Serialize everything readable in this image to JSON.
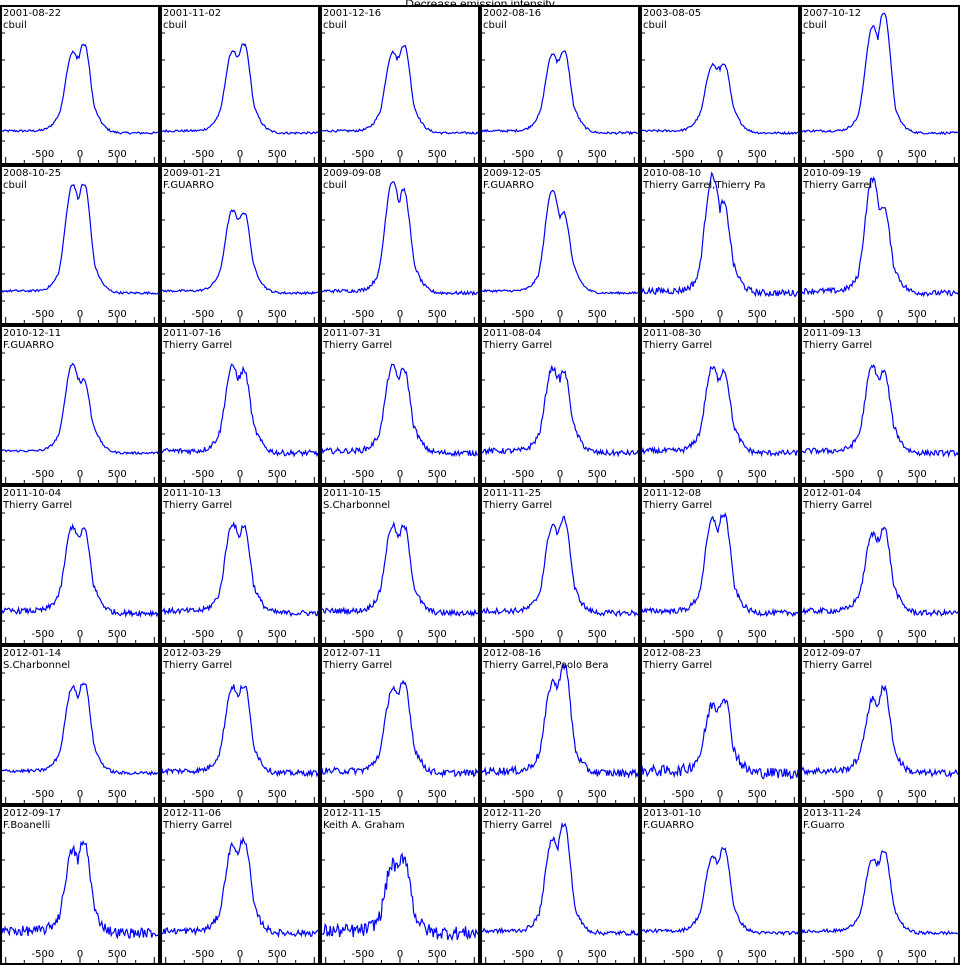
{
  "figure_title": "Decrease emission intensity",
  "chart_data": {
    "type": "line",
    "title": "Decrease emission intensity",
    "layout": "grid 6x6 small multiples",
    "line_color": "#0000ff",
    "xlim": [
      -1050,
      1050
    ],
    "x_ticks": [
      -500,
      0,
      500
    ],
    "grid": false,
    "panels": [
      {
        "date": "2001-08-22",
        "observer": "cbuil",
        "y": [
          0.1,
          0.12,
          0.55,
          0.63,
          0.71,
          0.45,
          0.1,
          0.08
        ],
        "noise": 0.004
      },
      {
        "date": "2001-11-02",
        "observer": "cbuil",
        "y": [
          0.1,
          0.12,
          0.55,
          0.64,
          0.71,
          0.45,
          0.1,
          0.08
        ],
        "noise": 0.004
      },
      {
        "date": "2001-12-16",
        "observer": "cbuil",
        "y": [
          0.1,
          0.12,
          0.55,
          0.63,
          0.7,
          0.45,
          0.1,
          0.08
        ],
        "noise": 0.004
      },
      {
        "date": "2002-08-16",
        "observer": "cbuil",
        "y": [
          0.1,
          0.12,
          0.54,
          0.62,
          0.66,
          0.45,
          0.1,
          0.08
        ],
        "noise": 0.004
      },
      {
        "date": "2003-08-05",
        "observer": "cbuil",
        "y": [
          0.1,
          0.12,
          0.5,
          0.55,
          0.57,
          0.42,
          0.1,
          0.08
        ],
        "noise": 0.004
      },
      {
        "date": "2007-10-12",
        "observer": "cbuil",
        "y": [
          0.1,
          0.13,
          0.55,
          0.8,
          0.93,
          0.55,
          0.1,
          0.09
        ],
        "noise": 0.004
      },
      {
        "date": "2008-10-25",
        "observer": "cbuil",
        "y": [
          0.1,
          0.12,
          0.6,
          0.82,
          0.85,
          0.45,
          0.1,
          0.08
        ],
        "noise": 0.004
      },
      {
        "date": "2009-01-21",
        "observer": "F.GUARRO",
        "y": [
          0.1,
          0.12,
          0.55,
          0.65,
          0.65,
          0.45,
          0.1,
          0.08
        ],
        "noise": 0.004
      },
      {
        "date": "2009-09-08",
        "observer": "cbuil",
        "y": [
          0.1,
          0.12,
          0.6,
          0.86,
          0.78,
          0.45,
          0.1,
          0.08
        ],
        "noise": 0.006
      },
      {
        "date": "2009-12-05",
        "observer": "F.GUARRO",
        "y": [
          0.1,
          0.12,
          0.55,
          0.8,
          0.62,
          0.4,
          0.1,
          0.08
        ],
        "noise": 0.004
      },
      {
        "date": "2010-08-10",
        "observer": "Thierry Garrel,Thierry Pa",
        "y": [
          0.1,
          0.12,
          0.55,
          0.9,
          0.68,
          0.4,
          0.1,
          0.08
        ],
        "noise": 0.012
      },
      {
        "date": "2010-09-19",
        "observer": "Thierry Garrel",
        "y": [
          0.1,
          0.12,
          0.55,
          0.88,
          0.66,
          0.4,
          0.1,
          0.08
        ],
        "noise": 0.01
      },
      {
        "date": "2010-12-11",
        "observer": "F.GUARRO",
        "y": [
          0.1,
          0.12,
          0.55,
          0.7,
          0.58,
          0.4,
          0.1,
          0.08
        ],
        "noise": 0.004
      },
      {
        "date": "2011-07-16",
        "observer": "Thierry Garrel",
        "y": [
          0.1,
          0.12,
          0.55,
          0.68,
          0.65,
          0.42,
          0.1,
          0.08
        ],
        "noise": 0.01
      },
      {
        "date": "2011-07-31",
        "observer": "Thierry Garrel",
        "y": [
          0.1,
          0.12,
          0.55,
          0.68,
          0.66,
          0.42,
          0.1,
          0.08
        ],
        "noise": 0.01
      },
      {
        "date": "2011-08-04",
        "observer": "Thierry Garrel",
        "y": [
          0.1,
          0.12,
          0.55,
          0.67,
          0.64,
          0.42,
          0.1,
          0.08
        ],
        "noise": 0.01
      },
      {
        "date": "2011-08-30",
        "observer": "Thierry Garrel",
        "y": [
          0.1,
          0.12,
          0.55,
          0.67,
          0.65,
          0.42,
          0.1,
          0.08
        ],
        "noise": 0.01
      },
      {
        "date": "2011-09-13",
        "observer": "Thierry Garrel",
        "y": [
          0.1,
          0.12,
          0.55,
          0.68,
          0.64,
          0.42,
          0.1,
          0.08
        ],
        "noise": 0.01
      },
      {
        "date": "2011-10-04",
        "observer": "Thierry Garrel",
        "y": [
          0.1,
          0.12,
          0.55,
          0.68,
          0.66,
          0.42,
          0.1,
          0.08
        ],
        "noise": 0.01
      },
      {
        "date": "2011-10-13",
        "observer": "Thierry Garrel",
        "y": [
          0.1,
          0.12,
          0.55,
          0.7,
          0.68,
          0.42,
          0.1,
          0.08
        ],
        "noise": 0.01
      },
      {
        "date": "2011-10-15",
        "observer": "S.Charbonnel",
        "y": [
          0.1,
          0.12,
          0.55,
          0.68,
          0.69,
          0.42,
          0.1,
          0.08
        ],
        "noise": 0.01
      },
      {
        "date": "2011-11-25",
        "observer": "Thierry Garrel",
        "y": [
          0.1,
          0.12,
          0.55,
          0.68,
          0.75,
          0.42,
          0.1,
          0.08
        ],
        "noise": 0.01
      },
      {
        "date": "2011-12-08",
        "observer": "Thierry Garrel",
        "y": [
          0.1,
          0.12,
          0.55,
          0.72,
          0.78,
          0.42,
          0.1,
          0.08
        ],
        "noise": 0.01
      },
      {
        "date": "2012-01-04",
        "observer": "Thierry Garrel",
        "y": [
          0.1,
          0.12,
          0.55,
          0.62,
          0.68,
          0.42,
          0.1,
          0.08
        ],
        "noise": 0.01
      },
      {
        "date": "2012-01-14",
        "observer": "S.Charbonnel",
        "y": [
          0.1,
          0.12,
          0.55,
          0.67,
          0.72,
          0.42,
          0.1,
          0.08
        ],
        "noise": 0.006
      },
      {
        "date": "2012-03-29",
        "observer": "Thierry Garrel",
        "y": [
          0.1,
          0.12,
          0.55,
          0.67,
          0.7,
          0.42,
          0.1,
          0.08
        ],
        "noise": 0.01
      },
      {
        "date": "2012-07-11",
        "observer": "Thierry Garrel",
        "y": [
          0.1,
          0.12,
          0.55,
          0.66,
          0.72,
          0.42,
          0.1,
          0.08
        ],
        "noise": 0.012
      },
      {
        "date": "2012-08-16",
        "observer": "Thierry Garrel,Paolo Bera",
        "y": [
          0.1,
          0.12,
          0.55,
          0.7,
          0.85,
          0.42,
          0.1,
          0.08
        ],
        "noise": 0.014
      },
      {
        "date": "2012-08-23",
        "observer": "Thierry Garrel",
        "y": [
          0.1,
          0.12,
          0.5,
          0.55,
          0.62,
          0.4,
          0.1,
          0.08
        ],
        "noise": 0.02
      },
      {
        "date": "2012-09-07",
        "observer": "Thierry Garrel",
        "y": [
          0.1,
          0.12,
          0.5,
          0.58,
          0.68,
          0.4,
          0.1,
          0.08
        ],
        "noise": 0.012
      },
      {
        "date": "2012-09-17",
        "observer": "F.Boanelli",
        "y": [
          0.1,
          0.12,
          0.5,
          0.64,
          0.72,
          0.42,
          0.1,
          0.08
        ],
        "noise": 0.018
      },
      {
        "date": "2012-11-06",
        "observer": "Thierry Garrel",
        "y": [
          0.1,
          0.12,
          0.55,
          0.68,
          0.74,
          0.42,
          0.1,
          0.08
        ],
        "noise": 0.012
      },
      {
        "date": "2012-11-15",
        "observer": "Keith A. Graham",
        "y": [
          0.1,
          0.12,
          0.45,
          0.55,
          0.62,
          0.4,
          0.1,
          0.08
        ],
        "noise": 0.025
      },
      {
        "date": "2012-11-20",
        "observer": "Thierry Garrel",
        "y": [
          0.1,
          0.12,
          0.55,
          0.72,
          0.85,
          0.42,
          0.1,
          0.08
        ],
        "noise": 0.008
      },
      {
        "date": "2013-01-10",
        "observer": "F.GUARRO",
        "y": [
          0.1,
          0.12,
          0.52,
          0.6,
          0.68,
          0.42,
          0.1,
          0.08
        ],
        "noise": 0.006
      },
      {
        "date": "2013-11-24",
        "observer": "F.Guarro",
        "y": [
          0.1,
          0.12,
          0.52,
          0.58,
          0.66,
          0.42,
          0.1,
          0.08
        ],
        "noise": 0.006
      }
    ]
  }
}
